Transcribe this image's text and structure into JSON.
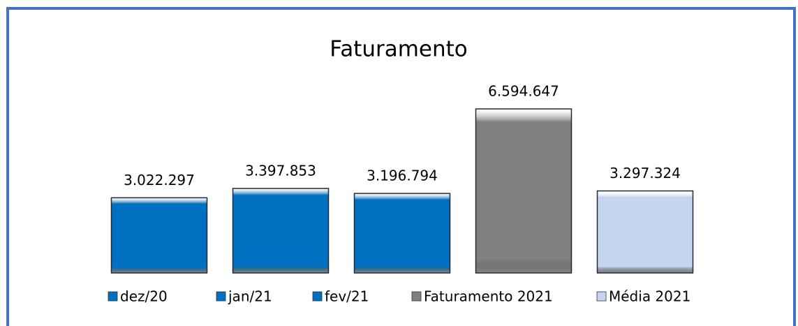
{
  "chart_data": {
    "type": "bar",
    "title": "Faturamento",
    "series": [
      {
        "name": "dez/20",
        "color": "#0070c0",
        "values": [
          3022297
        ],
        "value_labels": [
          "3.022.297"
        ]
      },
      {
        "name": "jan/21",
        "color": "#0070c0",
        "values": [
          3397853
        ],
        "value_labels": [
          "3.397.853"
        ]
      },
      {
        "name": "fev/21",
        "color": "#0070c0",
        "values": [
          3196794
        ],
        "value_labels": [
          "3.196.794"
        ]
      },
      {
        "name": "Faturamento 2021",
        "color": "#808080",
        "values": [
          6594647
        ],
        "value_labels": [
          "6.594.647"
        ]
      },
      {
        "name": "Média 2021",
        "color": "#c5d5f0",
        "values": [
          3297324
        ],
        "value_labels": [
          "3.297.324"
        ]
      }
    ]
  }
}
